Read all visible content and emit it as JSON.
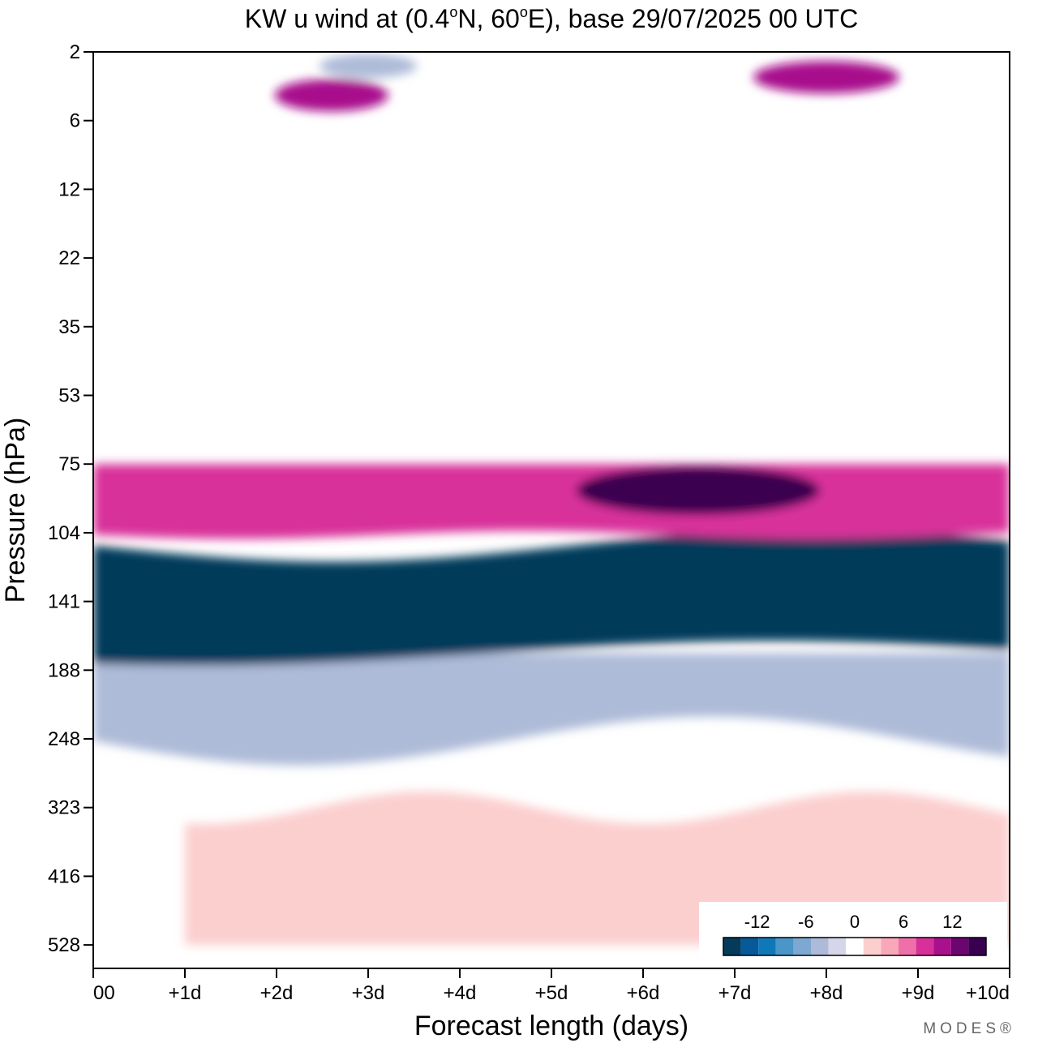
{
  "chart_data": {
    "type": "heatmap",
    "title": "KW u wind at (0.4°N, 60°E),  base 29/07/2025  00 UTC",
    "title_parts": {
      "prefix": "KW u wind at (0.4",
      "deg1": "o",
      "mid": "N, 60",
      "deg2": "o",
      "suffix": "E),  base 29/07/2025  00 UTC"
    },
    "xlabel": "Forecast length (days)",
    "ylabel": "Pressure (hPa)",
    "x_ticks": [
      "00",
      "+1d",
      "+2d",
      "+3d",
      "+4d",
      "+5d",
      "+6d",
      "+7d",
      "+8d",
      "+9d",
      "+10d"
    ],
    "xlim": [
      0,
      10
    ],
    "y_ticks": [
      "2",
      "6",
      "12",
      "22",
      "35",
      "53",
      "75",
      "104",
      "141",
      "188",
      "248",
      "323",
      "416",
      "528"
    ],
    "y_scale": "log-pressure",
    "colorbar": {
      "labels": [
        "-12",
        "-6",
        "0",
        "6",
        "12"
      ],
      "label_values": [
        -12,
        -6,
        0,
        6,
        12
      ],
      "levels": [
        -14,
        -12,
        -10,
        -8,
        -6,
        -4,
        -2,
        2,
        4,
        6,
        8,
        10,
        12,
        14
      ],
      "colors": [
        "#053a5a",
        "#08599a",
        "#1178b8",
        "#4a96c8",
        "#7da8d2",
        "#aebbd8",
        "#d6d6ea",
        "#ffffff",
        "#fccfcf",
        "#f8a8b8",
        "#ef70a8",
        "#d8309a",
        "#a8108c",
        "#6a066e",
        "#3a0050"
      ],
      "placement": "bottom-right"
    },
    "features": [
      {
        "name": "easterly-core",
        "value": -15,
        "days": [
          0,
          10
        ],
        "hPa": [
          110,
          175
        ]
      },
      {
        "name": "lower-easterly-shear",
        "value": -5,
        "days": [
          0,
          10
        ],
        "hPa": [
          175,
          250
        ]
      },
      {
        "name": "westerly-band",
        "value": 9,
        "days": [
          0,
          10
        ],
        "hPa": [
          75,
          105
        ]
      },
      {
        "name": "westerly-max",
        "value": 14,
        "day": 6.6,
        "hPa": 85
      },
      {
        "name": "westerly-lower-trop",
        "value": 3,
        "days": [
          1,
          10
        ],
        "hPa": [
          323,
          528
        ]
      },
      {
        "name": "upper-positive-1",
        "value": 11,
        "day": 2.6,
        "hPa": 4
      },
      {
        "name": "upper-positive-2",
        "value": 10,
        "day": 8.0,
        "hPa": 3
      },
      {
        "name": "upper-negative",
        "value": -6,
        "day": 3.0,
        "hPa": 2.5
      }
    ]
  },
  "branding": {
    "logo_text": "MODES®"
  }
}
